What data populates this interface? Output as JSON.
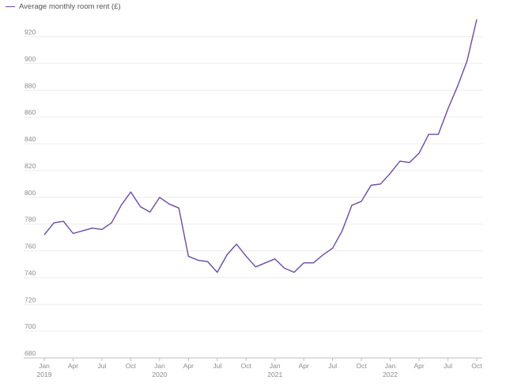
{
  "chart_data": {
    "type": "line",
    "legend": {
      "label": "Average monthly room rent (£)"
    },
    "colors": {
      "line": "#6b4ba1"
    },
    "ylim": [
      680,
      940
    ],
    "yticks": [
      680,
      700,
      720,
      740,
      760,
      780,
      800,
      820,
      840,
      860,
      880,
      900,
      920
    ],
    "grid": true,
    "x_tick_labels": [
      {
        "month_index": 0,
        "label": "Jan",
        "year": "2019"
      },
      {
        "month_index": 3,
        "label": "Apr",
        "year": ""
      },
      {
        "month_index": 6,
        "label": "Jul",
        "year": ""
      },
      {
        "month_index": 9,
        "label": "Oct",
        "year": ""
      },
      {
        "month_index": 12,
        "label": "Jan",
        "year": "2020"
      },
      {
        "month_index": 15,
        "label": "Apr",
        "year": ""
      },
      {
        "month_index": 18,
        "label": "Jul",
        "year": ""
      },
      {
        "month_index": 21,
        "label": "Oct",
        "year": ""
      },
      {
        "month_index": 24,
        "label": "Jan",
        "year": "2021"
      },
      {
        "month_index": 27,
        "label": "Apr",
        "year": ""
      },
      {
        "month_index": 30,
        "label": "Jul",
        "year": ""
      },
      {
        "month_index": 33,
        "label": "Oct",
        "year": ""
      },
      {
        "month_index": 36,
        "label": "Jan",
        "year": "2022"
      },
      {
        "month_index": 39,
        "label": "Apr",
        "year": ""
      },
      {
        "month_index": 42,
        "label": "Jul",
        "year": ""
      },
      {
        "month_index": 45,
        "label": "Oct",
        "year": ""
      }
    ],
    "series": [
      {
        "name": "Average monthly room rent (£)",
        "values": [
          772,
          781,
          782,
          773,
          775,
          777,
          776,
          781,
          794,
          804,
          793,
          789,
          800,
          795,
          792,
          756,
          753,
          752,
          744,
          757,
          765,
          756,
          748,
          751,
          754,
          747,
          744,
          751,
          751,
          757,
          762,
          775,
          794,
          797,
          809,
          810,
          818,
          827,
          826,
          833,
          847,
          847,
          866,
          883,
          902,
          933
        ]
      }
    ]
  }
}
